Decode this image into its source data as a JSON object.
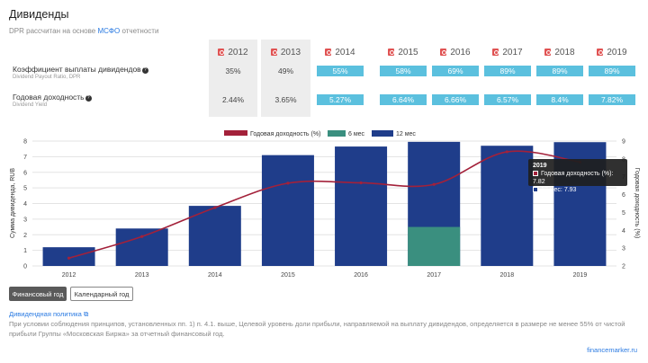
{
  "header": {
    "title": "Дивиденды",
    "subtitle_prefix": "DPR рассчитан на основе",
    "subtitle_link": "МСФО",
    "subtitle_suffix": "отчетности"
  },
  "table": {
    "years": [
      "2012",
      "2013",
      "2014",
      "2015",
      "2016",
      "2017",
      "2018",
      "2019"
    ],
    "rows": [
      {
        "label": "Коэффициент выплаты дивидендов",
        "sublabel": "Dividend Payout Ratio, DPR",
        "values": [
          "35%",
          "49%",
          "55%",
          "58%",
          "69%",
          "89%",
          "89%",
          "89%"
        ]
      },
      {
        "label": "Годовая доходность",
        "sublabel": "Dividend Yield",
        "values": [
          "2.44%",
          "3.65%",
          "5.27%",
          "6.64%",
          "6.66%",
          "6.57%",
          "8.4%",
          "7.82%"
        ]
      }
    ],
    "highlight_color": "#5bc0de"
  },
  "chart_data": {
    "type": "bar",
    "categories": [
      "2012",
      "2013",
      "2014",
      "2015",
      "2016",
      "2017",
      "2018",
      "2019"
    ],
    "series": [
      {
        "name": "12 мес",
        "kind": "bar",
        "color": "#1f3d8a",
        "values": [
          1.2,
          2.4,
          3.85,
          7.1,
          7.65,
          7.95,
          7.7,
          7.93
        ]
      },
      {
        "name": "6 мес",
        "kind": "bar",
        "color": "#3a8f7f",
        "values": [
          null,
          null,
          null,
          null,
          null,
          2.5,
          null,
          null
        ]
      },
      {
        "name": "Годовая доходность (%)",
        "kind": "line",
        "axis": "right",
        "color": "#a3213a",
        "values": [
          2.44,
          3.65,
          5.27,
          6.64,
          6.66,
          6.57,
          8.4,
          7.82
        ]
      }
    ],
    "ylabel": "Сумма дивиденда, RUB",
    "y2label": "Годовая доходность (%)",
    "ylim": [
      0,
      8
    ],
    "y2lim": [
      2,
      9
    ],
    "yticks": [
      "0",
      "1",
      "2",
      "3",
      "4",
      "5",
      "6",
      "7",
      "8"
    ],
    "y2ticks": [
      "2",
      "3",
      "4",
      "5",
      "6",
      "7",
      "8",
      "9"
    ],
    "legend_position": "top-center",
    "tooltip": {
      "year": "2019",
      "line1": "Годовая доходность (%): 7.82",
      "line2": "12 мес: 7.93"
    }
  },
  "controls": {
    "financial_year": "Финансовый год",
    "calendar_year": "Календарный год"
  },
  "policy": {
    "link": "Дивидендная политика",
    "text": "При условии соблюдения принципов, установленных пп. 1) п. 4.1. выше, Целевой уровень доли прибыли, направляемой на выплату дивидендов, определяется в размере не менее 55% от чистой прибыли Группы «Московская Биржа» за отчетный финансовый год."
  },
  "footer": "financemarker.ru"
}
